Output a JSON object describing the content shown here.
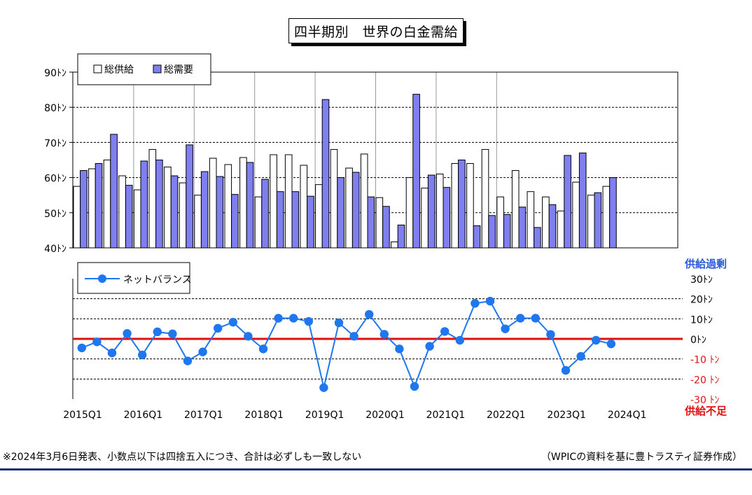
{
  "title": "四半期別　世界の白金需給",
  "unit": "ﾄﾝ",
  "notes": {
    "left": "※2024年3月6日発表、小数点以下は四捨五入につき、合計は必ずしも一致しない",
    "right": "（WPICの資料を基に豊トラスティ証券作成）"
  },
  "colors": {
    "supply": "#ffffff",
    "demand": "#7f7ff0",
    "net": "#1f77f0",
    "zero_line": "#e01010",
    "surplus_label": "#2b59d8",
    "deficit_label": "#e01010"
  },
  "chart_data": [
    {
      "type": "bar",
      "categories": [
        "2015Q1",
        "2015Q2",
        "2015Q3",
        "2015Q4",
        "2016Q1",
        "2016Q2",
        "2016Q3",
        "2016Q4",
        "2017Q1",
        "2017Q2",
        "2017Q3",
        "2017Q4",
        "2018Q1",
        "2018Q2",
        "2018Q3",
        "2018Q4",
        "2019Q1",
        "2019Q2",
        "2019Q3",
        "2019Q4",
        "2020Q1",
        "2020Q2",
        "2020Q3",
        "2020Q4",
        "2021Q1",
        "2021Q2",
        "2021Q3",
        "2021Q4",
        "2022Q1",
        "2022Q2",
        "2022Q3",
        "2022Q4",
        "2023Q1",
        "2023Q2",
        "2023Q3",
        "2023Q4",
        "2024Q1",
        "2024Q2",
        "2024Q3",
        "2024Q4"
      ],
      "series": [
        {
          "name": "総供給",
          "values": [
            57.5,
            62.5,
            65,
            60.5,
            56.5,
            68,
            63,
            58.5,
            55,
            65.5,
            63.7,
            65.7,
            54.5,
            66.5,
            66.5,
            63.5,
            58,
            68,
            62.7,
            66.7,
            54.3,
            41.7,
            60,
            57,
            61,
            64,
            64,
            68,
            54.5,
            62,
            56,
            54.5,
            50.5,
            58.7,
            55,
            57.5,
            null,
            null,
            null,
            null
          ]
        },
        {
          "name": "総需要",
          "values": [
            62,
            64,
            72.3,
            57.8,
            64.7,
            65,
            60.5,
            69.3,
            61.7,
            60.3,
            55.2,
            64.3,
            59.5,
            56,
            56,
            54.7,
            82.2,
            60,
            61.5,
            54.5,
            51.8,
            46.5,
            83.7,
            60.7,
            57.2,
            65,
            46.3,
            49.2,
            49.5,
            51.6,
            45.8,
            52.3,
            66.3,
            67,
            55.7,
            60,
            null,
            null,
            null,
            null
          ]
        }
      ],
      "ylim": [
        40,
        90
      ],
      "yticks": [
        40,
        50,
        60,
        70,
        80,
        90
      ],
      "ytick_labels": [
        "40ﾄﾝ",
        "50ﾄﾝ",
        "60ﾄﾝ",
        "70ﾄﾝ",
        "80ﾄﾝ",
        "90ﾄﾝ"
      ],
      "grid": true,
      "legend_position": "top-left"
    },
    {
      "type": "line",
      "categories": [
        "2015Q1",
        "2015Q2",
        "2015Q3",
        "2015Q4",
        "2016Q1",
        "2016Q2",
        "2016Q3",
        "2016Q4",
        "2017Q1",
        "2017Q2",
        "2017Q3",
        "2017Q4",
        "2018Q1",
        "2018Q2",
        "2018Q3",
        "2018Q4",
        "2019Q1",
        "2019Q2",
        "2019Q3",
        "2019Q4",
        "2020Q1",
        "2020Q2",
        "2020Q3",
        "2020Q4",
        "2021Q1",
        "2021Q2",
        "2021Q3",
        "2021Q4",
        "2022Q1",
        "2022Q2",
        "2022Q3",
        "2022Q4",
        "2023Q1",
        "2023Q2",
        "2023Q3",
        "2023Q4",
        "2024Q1",
        "2024Q2",
        "2024Q3",
        "2024Q4"
      ],
      "series": [
        {
          "name": "ネットバランス",
          "values": [
            -4.5,
            -1.5,
            -7,
            2.7,
            -8,
            3.5,
            2.5,
            -11,
            -6.5,
            5.3,
            8.3,
            1.3,
            -5,
            10.3,
            10.3,
            8.7,
            -24.3,
            8,
            1.3,
            12.2,
            2.3,
            -5,
            -23.7,
            -3.7,
            3.7,
            -0.7,
            17.7,
            18.8,
            5,
            10.3,
            10.3,
            2.2,
            -15.7,
            -8.7,
            -0.7,
            -2.5,
            null,
            null,
            null,
            null
          ]
        }
      ],
      "ylim": [
        -30,
        30
      ],
      "yticks": [
        -30,
        -20,
        -10,
        0,
        10,
        20,
        30
      ],
      "ytick_labels": [
        "-30 ﾄﾝ",
        "-20 ﾄﾝ",
        "-10 ﾄﾝ",
        "0ﾄﾝ",
        "10ﾄﾝ",
        "20ﾄﾝ",
        "30ﾄﾝ"
      ],
      "xtick_labels": [
        "2015Q1",
        "2016Q1",
        "2017Q1",
        "2018Q1",
        "2019Q1",
        "2020Q1",
        "2021Q1",
        "2022Q1",
        "2023Q1",
        "2024Q1"
      ],
      "annotations": {
        "top": "供給過剰",
        "bottom": "供給不足"
      },
      "zero_line": true,
      "grid": true,
      "legend_position": "top-left"
    }
  ]
}
